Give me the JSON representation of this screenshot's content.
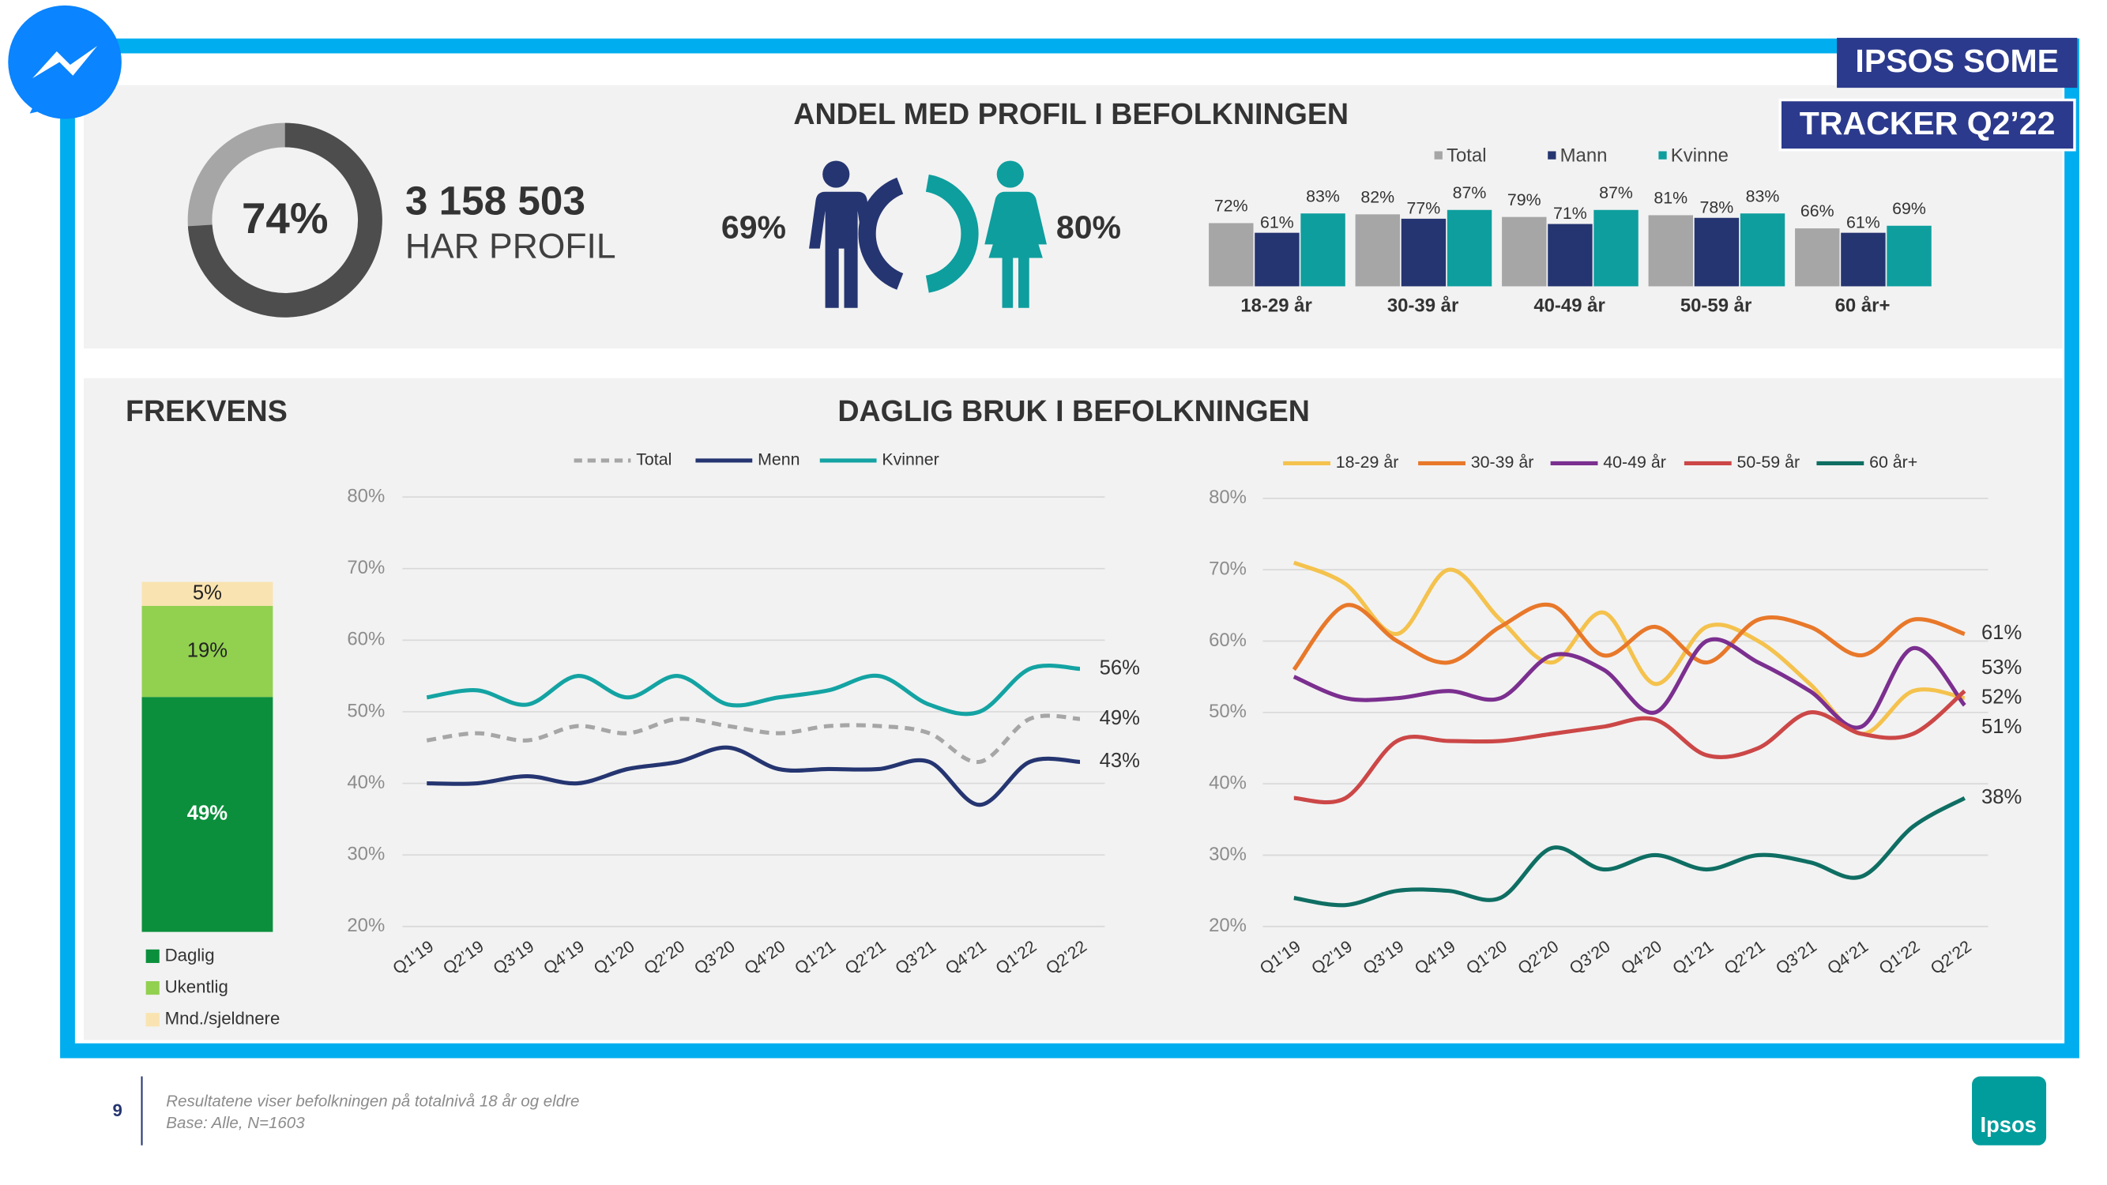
{
  "header": {
    "badge_top": "IPSOS SOME",
    "badge_bottom": "TRACKER Q2’22"
  },
  "chart_data": [
    {
      "type": "donut",
      "values": [
        74
      ],
      "value_labels": [
        "74%"
      ],
      "color": "#4d4d4d",
      "track_color": "#a6a6a6",
      "annotations": [
        "3 158 503",
        "HAR PROFIL"
      ]
    },
    {
      "type": "gender-donut",
      "title": "ANDEL MED PROFIL I BEFOLKNINGEN",
      "values": [
        69,
        80
      ],
      "value_labels": [
        "69%",
        "80%"
      ],
      "colors": [
        "#253571",
        "#0e9e9e"
      ]
    },
    {
      "type": "bar",
      "categories": [
        "18-29 år",
        "30-39 år",
        "40-49 år",
        "50-59 år",
        "60 år+"
      ],
      "series": [
        {
          "name": "Total",
          "color": "#a6a6a6",
          "values": [
            72,
            82,
            79,
            81,
            66
          ],
          "value_labels": [
            "72%",
            "82%",
            "79%",
            "81%",
            "66%"
          ]
        },
        {
          "name": "Mann",
          "color": "#253571",
          "values": [
            61,
            77,
            71,
            78,
            61
          ],
          "value_labels": [
            "61%",
            "77%",
            "71%",
            "78%",
            "61%"
          ]
        },
        {
          "name": "Kvinne",
          "color": "#0e9e9e",
          "values": [
            83,
            87,
            87,
            83,
            69
          ],
          "value_labels": [
            "83%",
            "87%",
            "87%",
            "83%",
            "69%"
          ]
        }
      ]
    },
    {
      "type": "stacked-bar",
      "title": "FREKVENS",
      "series": [
        {
          "name": "Daglig",
          "color": "#0b8f3c",
          "values": [
            49
          ],
          "value_labels": [
            "49%"
          ]
        },
        {
          "name": "Ukentlig",
          "color": "#92d050",
          "values": [
            19
          ],
          "value_labels": [
            "19%"
          ]
        },
        {
          "name": "Mnd./sjeldnere",
          "color": "#f9e3b0",
          "values": [
            5
          ],
          "value_labels": [
            "5%"
          ]
        }
      ]
    },
    {
      "type": "line",
      "title": "DAGLIG BRUK I BEFOLKNINGEN",
      "x": [
        "Q1’19",
        "Q2’19",
        "Q3’19",
        "Q4’19",
        "Q1’20",
        "Q2’20",
        "Q3’20",
        "Q4’20",
        "Q1’21",
        "Q2’21",
        "Q3’21",
        "Q4’21",
        "Q1’22",
        "Q2’22"
      ],
      "ylim": [
        20,
        80
      ],
      "yticks": [
        {
          "value": 20,
          "label": "20%"
        },
        {
          "value": 30,
          "label": "30%"
        },
        {
          "value": 40,
          "label": "40%"
        },
        {
          "value": 50,
          "label": "50%"
        },
        {
          "value": 60,
          "label": "60%"
        },
        {
          "value": 70,
          "label": "70%"
        },
        {
          "value": 80,
          "label": "80%"
        }
      ],
      "grid": true,
      "series": [
        {
          "name": "Total",
          "color": "#a6a6a6",
          "dashed": true,
          "values": [
            46,
            47,
            46,
            48,
            47,
            49,
            48,
            47,
            48,
            48,
            47,
            43,
            49,
            49
          ],
          "value_labels": [
            null,
            null,
            null,
            null,
            null,
            null,
            null,
            null,
            null,
            null,
            null,
            null,
            null,
            "49%"
          ]
        },
        {
          "name": "Menn",
          "color": "#253571",
          "values": [
            40,
            40,
            41,
            40,
            42,
            43,
            45,
            42,
            42,
            42,
            43,
            37,
            43,
            43
          ],
          "value_labels": [
            null,
            null,
            null,
            null,
            null,
            null,
            null,
            null,
            null,
            null,
            null,
            null,
            null,
            "43%"
          ]
        },
        {
          "name": "Kvinner",
          "color": "#14a3a3",
          "values": [
            52,
            53,
            51,
            55,
            52,
            55,
            51,
            52,
            53,
            55,
            51,
            50,
            56,
            56
          ],
          "value_labels": [
            null,
            null,
            null,
            null,
            null,
            null,
            null,
            null,
            null,
            null,
            null,
            null,
            null,
            "56%"
          ]
        }
      ]
    },
    {
      "type": "line",
      "x": [
        "Q1’19",
        "Q2’19",
        "Q3’19",
        "Q4’19",
        "Q1’20",
        "Q2’20",
        "Q3’20",
        "Q4’20",
        "Q1’21",
        "Q2’21",
        "Q3’21",
        "Q4’21",
        "Q1’22",
        "Q2’22"
      ],
      "ylim": [
        20,
        80
      ],
      "yticks": [
        {
          "value": 20,
          "label": "20%"
        },
        {
          "value": 30,
          "label": "30%"
        },
        {
          "value": 40,
          "label": "40%"
        },
        {
          "value": 50,
          "label": "50%"
        },
        {
          "value": 60,
          "label": "60%"
        },
        {
          "value": 70,
          "label": "70%"
        },
        {
          "value": 80,
          "label": "80%"
        }
      ],
      "grid": true,
      "series": [
        {
          "name": "18-29 år",
          "color": "#f4c24d",
          "values": [
            71,
            68,
            61,
            70,
            63,
            57,
            64,
            54,
            62,
            60,
            54,
            47,
            53,
            52
          ],
          "value_labels": [
            null,
            null,
            null,
            null,
            null,
            null,
            null,
            null,
            null,
            null,
            null,
            null,
            null,
            "52%"
          ]
        },
        {
          "name": "30-39 år",
          "color": "#e8782a",
          "values": [
            56,
            65,
            60,
            57,
            62,
            65,
            58,
            62,
            57,
            63,
            62,
            58,
            63,
            61
          ],
          "value_labels": [
            null,
            null,
            null,
            null,
            null,
            null,
            null,
            null,
            null,
            null,
            null,
            null,
            null,
            "61%"
          ]
        },
        {
          "name": "40-49 år",
          "color": "#7b2f8f",
          "values": [
            55,
            52,
            52,
            53,
            52,
            58,
            56,
            50,
            60,
            57,
            53,
            48,
            59,
            51
          ],
          "value_labels": [
            null,
            null,
            null,
            null,
            null,
            null,
            null,
            null,
            null,
            null,
            null,
            null,
            null,
            "51%"
          ]
        },
        {
          "name": "50-59 år",
          "color": "#cc4747",
          "values": [
            38,
            38,
            46,
            46,
            46,
            47,
            48,
            49,
            44,
            45,
            50,
            47,
            47,
            53
          ],
          "value_labels": [
            null,
            null,
            null,
            null,
            null,
            null,
            null,
            null,
            null,
            null,
            null,
            null,
            null,
            "53%"
          ]
        },
        {
          "name": "60 år+",
          "color": "#0f6e63",
          "values": [
            24,
            23,
            25,
            25,
            24,
            31,
            28,
            30,
            28,
            30,
            29,
            27,
            34,
            38
          ],
          "value_labels": [
            null,
            null,
            null,
            null,
            null,
            null,
            null,
            null,
            null,
            null,
            null,
            null,
            null,
            "38%"
          ]
        }
      ]
    }
  ],
  "footer": {
    "page": 9,
    "notes": [
      "Resultatene viser befolkningen på totalnivå 18 år og eldre",
      "Base: Alle, N=1603"
    ],
    "logo": "Ipsos"
  }
}
